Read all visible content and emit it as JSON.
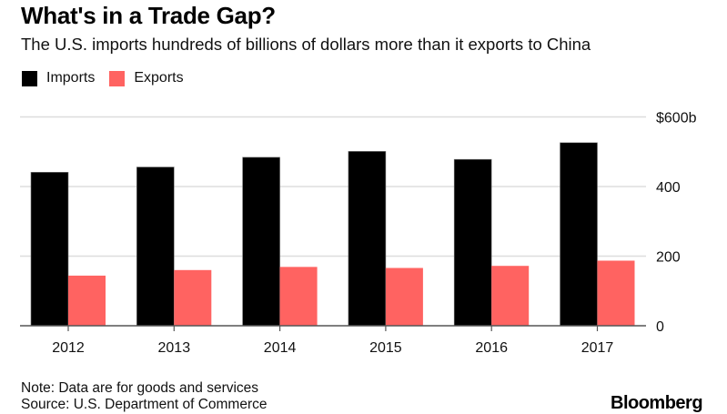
{
  "header": {
    "title": "What's in a Trade Gap?",
    "subtitle": "The U.S. imports hundreds of billions of dollars more than it exports to China"
  },
  "footer": {
    "note": "Note: Data are for goods and services",
    "source": "Source: U.S. Department of Commerce",
    "brand": "Bloomberg"
  },
  "chart_data": {
    "type": "bar",
    "title": "What's in a Trade Gap?",
    "subtitle": "The U.S. imports hundreds of billions of dollars more than it exports to China",
    "xlabel": "",
    "ylabel": "",
    "categories": [
      "2012",
      "2013",
      "2014",
      "2015",
      "2016",
      "2017"
    ],
    "series": [
      {
        "name": "Imports",
        "color": "#000000",
        "values": [
          441,
          456,
          484,
          501,
          478,
          526
        ]
      },
      {
        "name": "Exports",
        "color": "#ff6361",
        "values": [
          144,
          160,
          169,
          166,
          172,
          187
        ]
      }
    ],
    "ylim": [
      0,
      600
    ],
    "yticks": [
      0,
      200,
      400,
      600
    ],
    "ytick_labels": [
      "0",
      "200",
      "400",
      "$600b"
    ],
    "y_axis_side": "right",
    "grid": true,
    "legend": {
      "position": "top-left",
      "entries": [
        "Imports",
        "Exports"
      ]
    },
    "notes": [
      "Note: Data are for goods and services",
      "Source: U.S. Department of Commerce"
    ]
  }
}
